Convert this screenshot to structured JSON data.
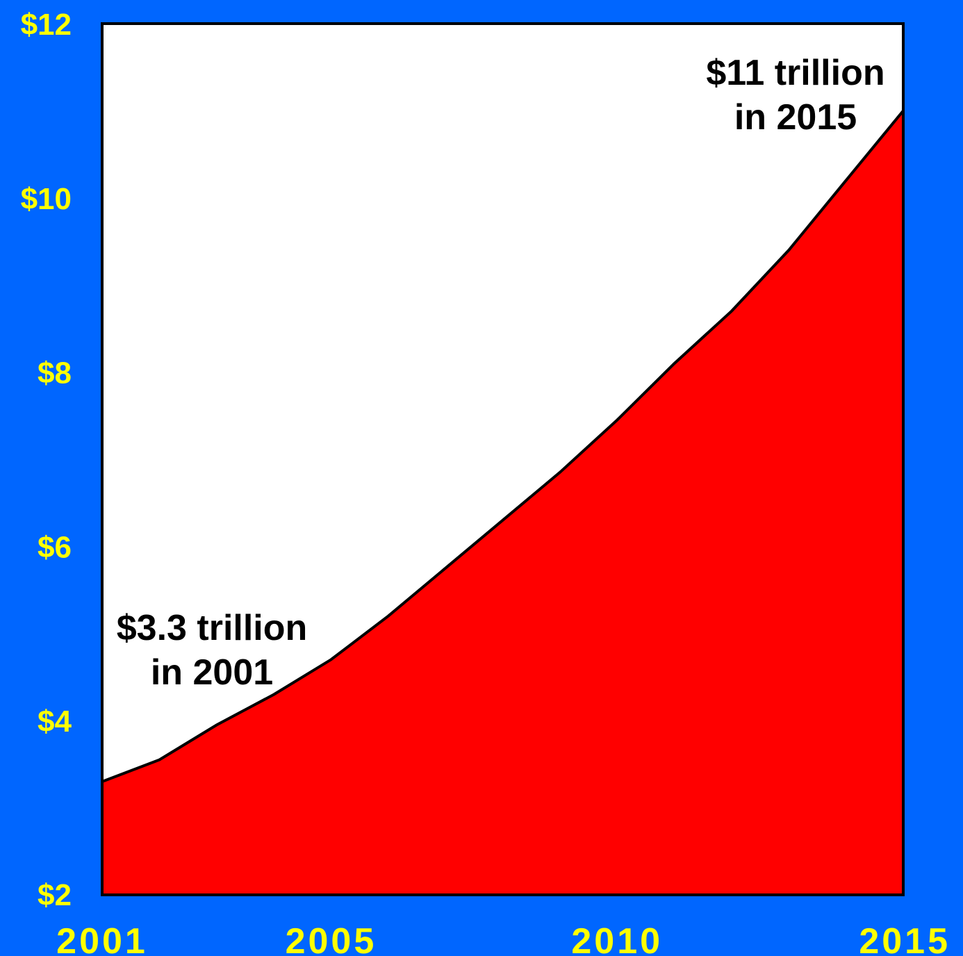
{
  "chart_data": {
    "type": "area",
    "title": "",
    "xlabel": "",
    "ylabel": "",
    "x": [
      2001,
      2002,
      2003,
      2004,
      2005,
      2006,
      2007,
      2008,
      2009,
      2010,
      2011,
      2012,
      2013,
      2014,
      2015
    ],
    "series": [
      {
        "values": [
          3.3,
          3.55,
          3.95,
          4.3,
          4.7,
          5.2,
          5.75,
          6.3,
          6.85,
          7.45,
          8.1,
          8.7,
          9.4,
          10.2,
          11.0
        ]
      }
    ],
    "xlim": [
      2001,
      2015
    ],
    "ylim": [
      2,
      12
    ],
    "x_ticks": [
      "2001",
      "2005",
      "2010",
      "2015"
    ],
    "y_ticks": [
      "$2",
      "$4",
      "$6",
      "$8",
      "$10",
      "$12"
    ],
    "annotations": [
      {
        "lines": [
          "$3.3 trillion",
          "in 2001"
        ]
      },
      {
        "lines": [
          "$11 trillion",
          "in 2015"
        ]
      }
    ],
    "colors": {
      "background": "#0066ff",
      "plot_background": "#ffffff",
      "area_fill": "#ff0000",
      "line": "#000000",
      "tick_text": "#ffff00",
      "annotation_text": "#000000"
    }
  }
}
